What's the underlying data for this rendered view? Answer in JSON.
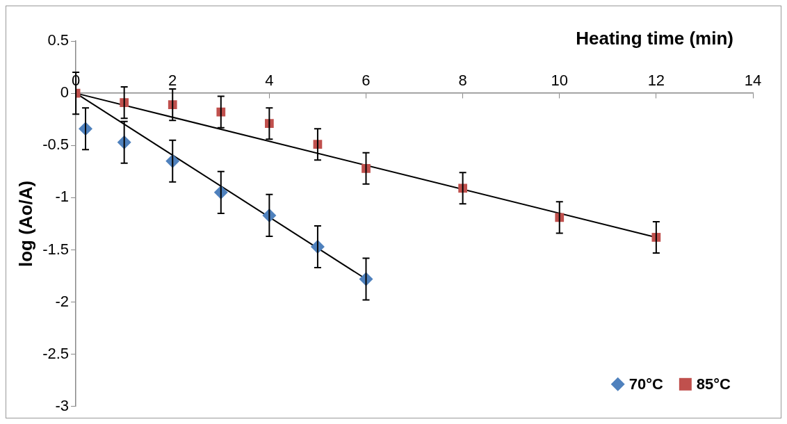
{
  "chart_data": {
    "type": "scatter",
    "xlabel": "Heating time (min)",
    "ylabel": "log (Ao/A)",
    "xlim": [
      0,
      14
    ],
    "xticks": [
      0,
      2,
      4,
      6,
      8,
      10,
      12,
      14
    ],
    "ylim": [
      -3,
      0.5
    ],
    "yticks": [
      0.5,
      0,
      -0.5,
      -1,
      -1.5,
      -2,
      -2.5,
      -3
    ],
    "grid": false,
    "legend": "bottom right",
    "series": [
      {
        "name": "70°C",
        "type": "scatter",
        "marker": "diamond",
        "color": "#4f81bd",
        "x": [
          0.2,
          1,
          2,
          3,
          4,
          5,
          6
        ],
        "values": [
          -0.34,
          -0.47,
          -0.65,
          -0.95,
          -1.17,
          -1.47,
          -1.78
        ],
        "errors": [
          0.2,
          0.2,
          0.2,
          0.2,
          0.2,
          0.2,
          0.2
        ]
      },
      {
        "name": "85°C",
        "type": "scatter",
        "marker": "square",
        "color": "#c0504d",
        "x": [
          0,
          1,
          2,
          3,
          4,
          5,
          6,
          8,
          10,
          12
        ],
        "values": [
          0,
          -0.09,
          -0.11,
          -0.18,
          -0.29,
          -0.49,
          -0.72,
          -0.91,
          -1.19,
          -1.38
        ],
        "errors": [
          0.2,
          0.15,
          0.15,
          0.15,
          0.15,
          0.15,
          0.15,
          0.15,
          0.15,
          0.15
        ]
      },
      {
        "type": "line",
        "marker": "none",
        "color": "#000000",
        "x": [
          0,
          6
        ],
        "values": [
          0,
          -1.78
        ]
      },
      {
        "type": "line",
        "marker": "none",
        "color": "#000000",
        "x": [
          0,
          12
        ],
        "values": [
          0,
          -1.38
        ]
      }
    ]
  }
}
